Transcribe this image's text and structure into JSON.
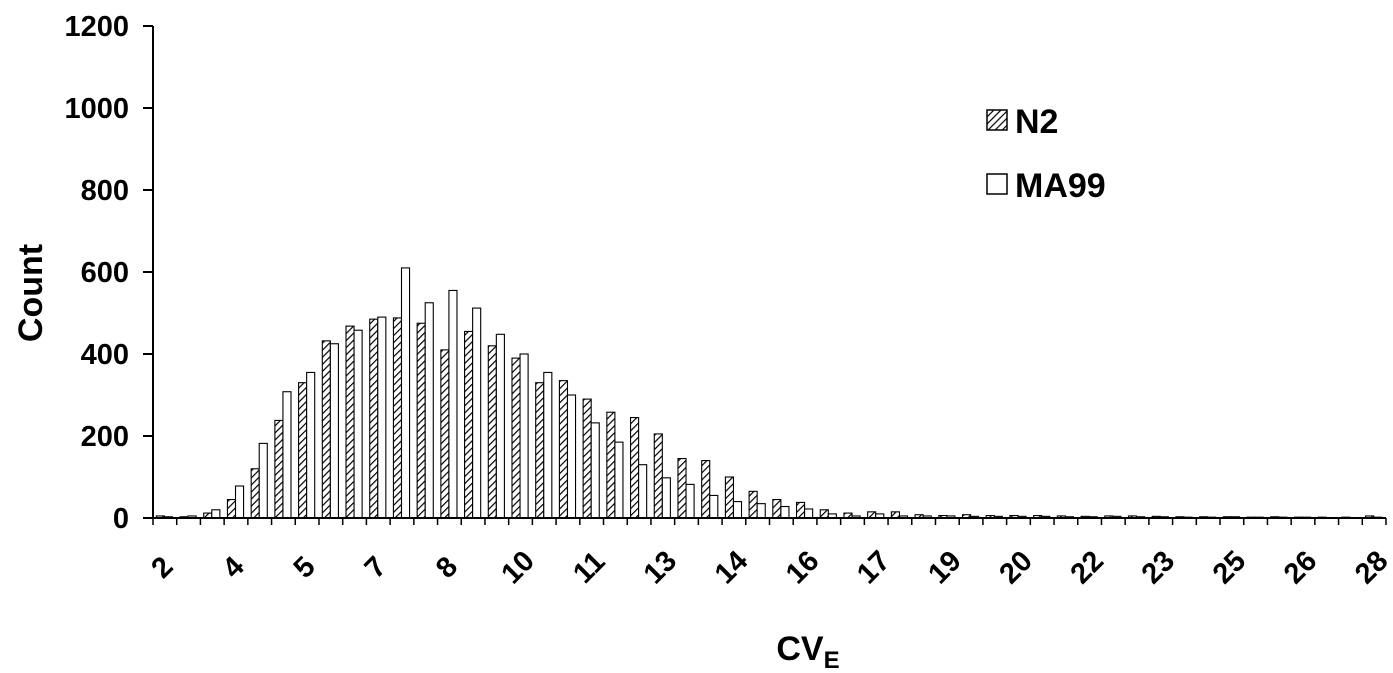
{
  "chart_data": {
    "type": "bar",
    "title": "",
    "xlabel": "CV",
    "xlabel_subscript": "E",
    "ylabel": "Count",
    "ylim": [
      0,
      1200
    ],
    "yticks": [
      0,
      200,
      400,
      600,
      800,
      1000,
      1200
    ],
    "grid": false,
    "legend_position": "top-right",
    "x_tick_labels": [
      "2",
      "4",
      "5",
      "7",
      "8",
      "10",
      "11",
      "13",
      "14",
      "16",
      "17",
      "19",
      "20",
      "22",
      "23",
      "25",
      "26",
      "28"
    ],
    "x_tick_every_n_bins": 3,
    "series": [
      {
        "name": "N2",
        "pattern": "hatched",
        "values": [
          5,
          3,
          12,
          45,
          120,
          238,
          330,
          432,
          468,
          485,
          488,
          475,
          410,
          455,
          420,
          390,
          330,
          335,
          290,
          258,
          245,
          205,
          145,
          140,
          100,
          65,
          45,
          38,
          20,
          12,
          15,
          15,
          8,
          6,
          8,
          6,
          6,
          6,
          5,
          4,
          5,
          5,
          4,
          3,
          3,
          3,
          2,
          3,
          2,
          2,
          2,
          5
        ]
      },
      {
        "name": "MA99",
        "pattern": "white",
        "values": [
          3,
          5,
          20,
          78,
          182,
          308,
          355,
          425,
          458,
          490,
          610,
          525,
          555,
          512,
          448,
          400,
          355,
          300,
          232,
          185,
          130,
          98,
          82,
          55,
          40,
          35,
          28,
          22,
          10,
          5,
          10,
          5,
          5,
          5,
          4,
          4,
          4,
          4,
          3,
          3,
          4,
          3,
          3,
          2,
          2,
          3,
          2,
          2,
          2,
          1,
          1,
          2
        ]
      }
    ]
  }
}
